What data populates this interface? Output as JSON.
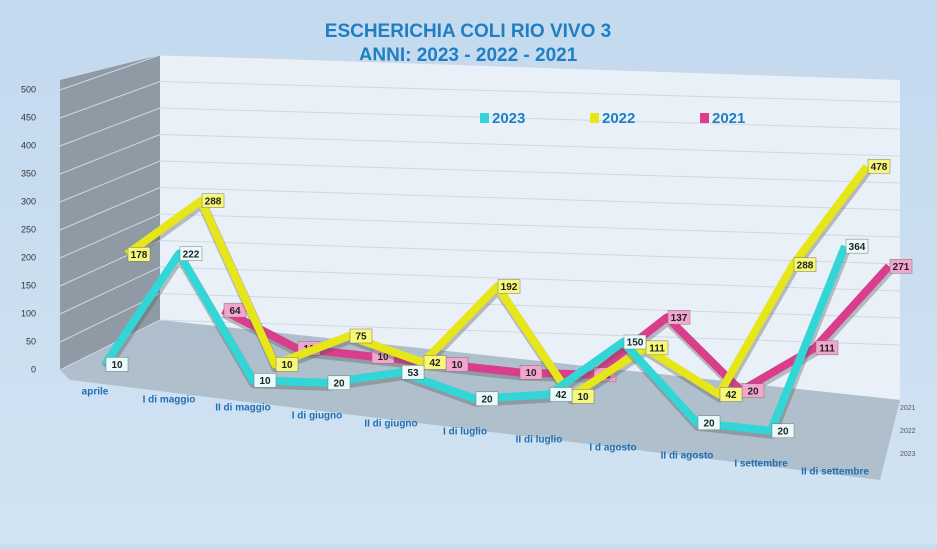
{
  "chart_data": {
    "type": "line3d",
    "title": "ESCHERICHIA COLI RIO VIVO 3",
    "subtitle": "ANNI: 2023 - 2022 - 2021",
    "categories": [
      "aprile",
      "I di maggio",
      "II di maggio",
      "I di giugno",
      "II di giugno",
      "I di luglio",
      "II di luglio",
      "I d agosto",
      "II di agosto",
      "I settembre",
      "II di settembre"
    ],
    "series": [
      {
        "name": "2023",
        "color": "#33d6d6",
        "values": [
          10,
          222,
          10,
          20,
          53,
          20,
          42,
          150,
          20,
          20,
          364
        ]
      },
      {
        "name": "2022",
        "color": "#e6e619",
        "values": [
          178,
          288,
          10,
          75,
          42,
          192,
          10,
          111,
          42,
          288,
          478
        ]
      },
      {
        "name": "2021",
        "color": "#d93d8c",
        "values": [
          null,
          64,
          10,
          10,
          10,
          10,
          20,
          137,
          20,
          111,
          271
        ]
      }
    ],
    "depth_labels": [
      "2021",
      "2022",
      "2023"
    ],
    "ylim": [
      0,
      500
    ],
    "yticks": [
      0,
      50,
      100,
      150,
      200,
      250,
      300,
      350,
      400,
      450,
      500
    ],
    "grid": true,
    "legend": "top"
  }
}
